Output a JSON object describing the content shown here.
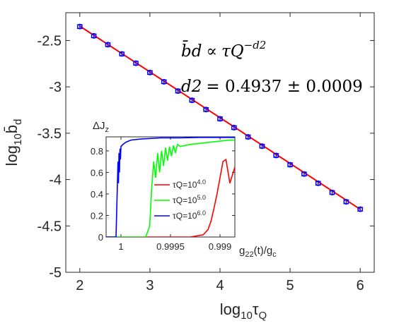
{
  "chart_data": [
    {
      "type": "scatter",
      "xlabel": "log10τQ",
      "ylabel": "log10b̄d",
      "xlim": [
        1.8,
        6.2
      ],
      "ylim": [
        -5,
        -2.2
      ],
      "xticks": [
        2,
        3,
        4,
        5,
        6
      ],
      "yticks": [
        -2.5,
        -3,
        -3.5,
        -4,
        -4.5,
        -5
      ],
      "ytick_labels": [
        "-2.5",
        "-3",
        "-3.5",
        "-4",
        "-4.5",
        "-5"
      ],
      "grid": false,
      "series": [
        {
          "style": "markers-with-errorbars",
          "color": "#0000ff",
          "x": [
            2.0,
            2.2,
            2.4,
            2.6,
            2.8,
            3.0,
            3.2,
            3.4,
            3.6,
            3.8,
            4.0,
            4.2,
            4.4,
            4.6,
            4.8,
            5.0,
            5.2,
            5.4,
            5.6,
            5.8,
            6.0
          ],
          "y": [
            -2.35,
            -2.45,
            -2.545,
            -2.645,
            -2.745,
            -2.845,
            -2.945,
            -3.045,
            -3.145,
            -3.245,
            -3.345,
            -3.44,
            -3.54,
            -3.64,
            -3.74,
            -3.84,
            -3.94,
            -4.04,
            -4.14,
            -4.24,
            -4.32
          ],
          "error": 0.02
        },
        {
          "style": "fit-line",
          "color": "#ff0000",
          "x": [
            2.0,
            6.0
          ],
          "y": [
            -2.345,
            -4.32
          ]
        }
      ],
      "annotations": {
        "formula_lhs": "b̄d",
        "formula_rel": "∝",
        "formula_rhs_base": "τQ",
        "formula_rhs_exp": "−d2",
        "fit_lhs": "d2",
        "fit_value": "= 0.4937 ± 0.0009"
      }
    },
    {
      "type": "line",
      "inset": true,
      "ylabel": "ΔJz",
      "xlabel": "g22(t)/gc",
      "xticks": [
        1,
        0.9995,
        0.999
      ],
      "xtick_labels": [
        "1",
        "0.9995",
        "0.999"
      ],
      "xlim": [
        1.00015,
        0.99885
      ],
      "yticks": [
        0,
        0.2,
        0.4,
        0.6,
        0.8
      ],
      "ytick_labels": [
        "0",
        "0.2",
        "0.4",
        "0.6",
        "0.8"
      ],
      "ylim": [
        0,
        0.93
      ],
      "legend_position": "inside-center-right",
      "series": [
        {
          "name": "τQ=10^4.0",
          "label_base": "τQ=10",
          "label_exp": "4.0",
          "color": "#ff0000",
          "x": [
            1.00015,
            0.9993,
            0.99917,
            0.99912,
            0.99909,
            0.99906,
            0.99903,
            0.999,
            0.99897,
            0.99894,
            0.9989,
            0.99885
          ],
          "y": [
            0,
            0,
            0.02,
            0.07,
            0.15,
            0.27,
            0.4,
            0.55,
            0.7,
            0.72,
            0.5,
            0.65
          ]
        },
        {
          "name": "τQ=10^5.0",
          "label_base": "τQ=10",
          "label_exp": "5.0",
          "color": "#00ff00",
          "x": [
            1.00015,
            0.99975,
            0.99971,
            0.99969,
            0.99967,
            0.99965,
            0.99963,
            0.99961,
            0.99959,
            0.99957,
            0.99955,
            0.99953,
            0.99951,
            0.99949,
            0.99947,
            0.99945,
            0.99943,
            0.9994,
            0.9993,
            0.9992,
            0.9991,
            0.999,
            0.9989,
            0.99885
          ],
          "y": [
            0,
            0,
            0.1,
            0.45,
            0.7,
            0.55,
            0.78,
            0.6,
            0.8,
            0.66,
            0.83,
            0.71,
            0.84,
            0.75,
            0.85,
            0.78,
            0.86,
            0.84,
            0.86,
            0.87,
            0.88,
            0.89,
            0.9,
            0.9
          ]
        },
        {
          "name": "τQ=10^6.0",
          "label_base": "τQ=10",
          "label_exp": "6.0",
          "color": "#0000ff",
          "x": [
            1.00015,
            1.00005,
            1.00004,
            1.00003,
            1.000025,
            1.00002,
            1.000015,
            1.00001,
            1.000005,
            1.0,
            0.99998,
            0.99995,
            0.9999,
            0.9998,
            0.9996,
            0.9994,
            0.9992,
            0.999,
            0.99885
          ],
          "y": [
            0,
            0,
            0.35,
            0.7,
            0.5,
            0.78,
            0.6,
            0.82,
            0.72,
            0.84,
            0.86,
            0.88,
            0.9,
            0.91,
            0.92,
            0.92,
            0.925,
            0.925,
            0.925
          ]
        }
      ]
    }
  ]
}
